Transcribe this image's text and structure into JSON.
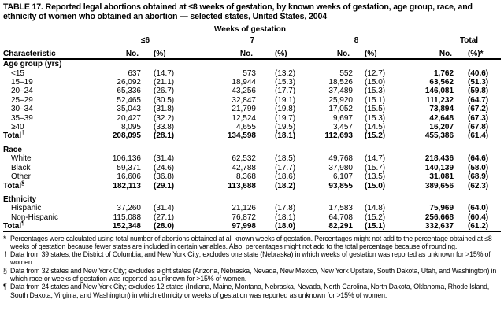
{
  "title": "TABLE 17. Reported legal abortions obtained at ≤8 weeks of gestation, by known weeks of gestation, age group, race, and ethnicity of women who obtained an abortion — selected states, United States, 2004",
  "table": {
    "span_header": "Weeks of gestation",
    "characteristic_header": "Characteristic",
    "group_headers": [
      "≤6",
      "7",
      "8",
      "Total"
    ],
    "subheaders": {
      "no": "No.",
      "pct": "(%)",
      "pct_total": "(%)*"
    },
    "sections": [
      {
        "header": "Age group (yrs)",
        "rows": [
          {
            "label": "<15",
            "indent": true,
            "cells": [
              "637",
              "(14.7)",
              "573",
              "(13.2)",
              "552",
              "(12.7)",
              "1,762",
              "(40.6)"
            ]
          },
          {
            "label": "15–19",
            "indent": true,
            "cells": [
              "26,092",
              "(21.1)",
              "18,944",
              "(15.3)",
              "18,526",
              "(15.0)",
              "63,562",
              "(51.3)"
            ]
          },
          {
            "label": "20–24",
            "indent": true,
            "cells": [
              "65,336",
              "(26.7)",
              "43,256",
              "(17.7)",
              "37,489",
              "(15.3)",
              "146,081",
              "(59.8)"
            ]
          },
          {
            "label": "25–29",
            "indent": true,
            "cells": [
              "52,465",
              "(30.5)",
              "32,847",
              "(19.1)",
              "25,920",
              "(15.1)",
              "111,232",
              "(64.7)"
            ]
          },
          {
            "label": "30–34",
            "indent": true,
            "cells": [
              "35,043",
              "(31.8)",
              "21,799",
              "(19.8)",
              "17,052",
              "(15.5)",
              "73,894",
              "(67.2)"
            ]
          },
          {
            "label": "35–39",
            "indent": true,
            "cells": [
              "20,427",
              "(32.2)",
              "12,524",
              "(19.7)",
              "9,697",
              "(15.3)",
              "42,648",
              "(67.3)"
            ]
          },
          {
            "label": "≥40",
            "indent": true,
            "cells": [
              "8,095",
              "(33.8)",
              "4,655",
              "(19.5)",
              "3,457",
              "(14.5)",
              "16,207",
              "(67.8)"
            ]
          },
          {
            "label": "Total",
            "sup": "†",
            "total": true,
            "cells": [
              "208,095",
              "(28.1)",
              "134,598",
              "(18.1)",
              "112,693",
              "(15.2)",
              "455,386",
              "(61.4)"
            ]
          }
        ]
      },
      {
        "header": "Race",
        "rows": [
          {
            "label": "White",
            "indent": true,
            "cells": [
              "106,136",
              "(31.4)",
              "62,532",
              "(18.5)",
              "49,768",
              "(14.7)",
              "218,436",
              "(64.6)"
            ]
          },
          {
            "label": "Black",
            "indent": true,
            "cells": [
              "59,371",
              "(24.6)",
              "42,788",
              "(17.7)",
              "37,980",
              "(15.7)",
              "140,139",
              "(58.0)"
            ]
          },
          {
            "label": "Other",
            "indent": true,
            "cells": [
              "16,606",
              "(36.8)",
              "8,368",
              "(18.6)",
              "6,107",
              "(13.5)",
              "31,081",
              "(68.9)"
            ]
          },
          {
            "label": "Total",
            "sup": "§",
            "total": true,
            "cells": [
              "182,113",
              "(29.1)",
              "113,688",
              "(18.2)",
              "93,855",
              "(15.0)",
              "389,656",
              "(62.3)"
            ]
          }
        ]
      },
      {
        "header": "Ethnicity",
        "rows": [
          {
            "label": "Hispanic",
            "indent": true,
            "cells": [
              "37,260",
              "(31.4)",
              "21,126",
              "(17.8)",
              "17,583",
              "(14.8)",
              "75,969",
              "(64.0)"
            ]
          },
          {
            "label": "Non-Hispanic",
            "indent": true,
            "cells": [
              "115,088",
              "(27.1)",
              "76,872",
              "(18.1)",
              "64,708",
              "(15.2)",
              "256,668",
              "(60.4)"
            ]
          },
          {
            "label": "Total",
            "sup": "¶",
            "total": true,
            "cells": [
              "152,348",
              "(28.0)",
              "97,998",
              "(18.0)",
              "82,291",
              "(15.1)",
              "332,637",
              "(61.2)"
            ]
          }
        ]
      }
    ]
  },
  "footnotes": [
    {
      "marker": "*",
      "text": "Percentages were calculated using total number of abortions obtained at all known weeks of gestation. Percentages might not add to the percentage obtained at ≤8 weeks of gestation because fewer states are included in certain variables. Also, percentages might not add to the total percentage because of rounding."
    },
    {
      "marker": "†",
      "text": "Data from 39 states, the District of Columbia, and New York City; excludes one state (Nebraska) in which weeks of gestation was reported as unknown for >15% of women."
    },
    {
      "marker": "§",
      "text": "Data from 32 states and New York City; excludes eight states (Arizona, Nebraska, Nevada, New Mexico, New York Upstate, South Dakota, Utah, and Washington) in which race or weeks of gestation was reported as unknown for >15% of women."
    },
    {
      "marker": "¶",
      "text": "Data from 24 states and New York City; excludes 12 states (Indiana, Maine, Montana, Nebraska, Nevada, North Carolina, North Dakota, Oklahoma, Rhode Island, South Dakota, Virginia, and Washington) in which ethnicity or weeks of gestation was reported as unknown for >15% of women."
    }
  ]
}
